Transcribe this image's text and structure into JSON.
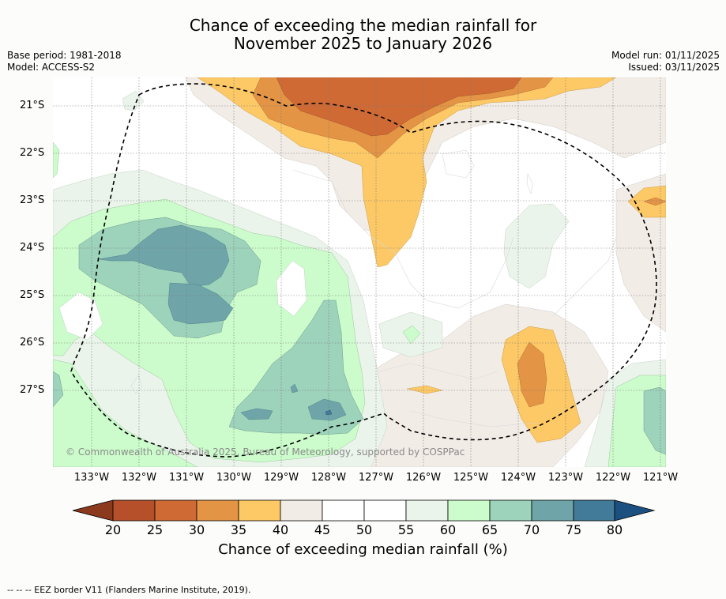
{
  "title": {
    "line1": "Chance of exceeding the median rainfall for",
    "line2": "November 2025 to January 2026"
  },
  "meta_left": {
    "base_period": "Base period: 1981-2018",
    "model": "Model: ACCESS-S2"
  },
  "meta_right": {
    "model_run": "Model run: 01/11/2025",
    "issued": "Issued: 03/11/2025"
  },
  "map": {
    "lat_labels": [
      "21°S",
      "22°S",
      "23°S",
      "24°S",
      "25°S",
      "26°S",
      "27°S"
    ],
    "lon_labels": [
      "133°W",
      "132°W",
      "131°W",
      "130°W",
      "129°W",
      "128°W",
      "127°W",
      "126°W",
      "125°W",
      "124°W",
      "123°W",
      "122°W",
      "121°W"
    ],
    "credit": "© Commonwealth of Australia 2025, Bureau of Meteorology, supported by COSPPac"
  },
  "colorbar": {
    "ticks": [
      "20",
      "25",
      "30",
      "35",
      "40",
      "45",
      "50",
      "55",
      "60",
      "65",
      "70",
      "75",
      "80"
    ],
    "colors": {
      "below20": "#8b3a1e",
      "c20_25": "#b5502b",
      "c25_30": "#cf6a35",
      "c30_35": "#e39445",
      "c35_40": "#fdc866",
      "c40_45": "#f2ece7",
      "c45_50": "#ffffff",
      "c50_55": "#ffffff",
      "c55_60": "#ebf4eb",
      "c60_65": "#ccfccc",
      "c65_70": "#9dd2bb",
      "c70_75": "#6fa5a9",
      "c75_80": "#427a99",
      "above80": "#1c5080"
    },
    "label": "Chance of exceeding median rainfall (%)"
  },
  "footnote": "-- -- -- EEZ border V11 (Flanders Marine Institute, 2019)."
}
